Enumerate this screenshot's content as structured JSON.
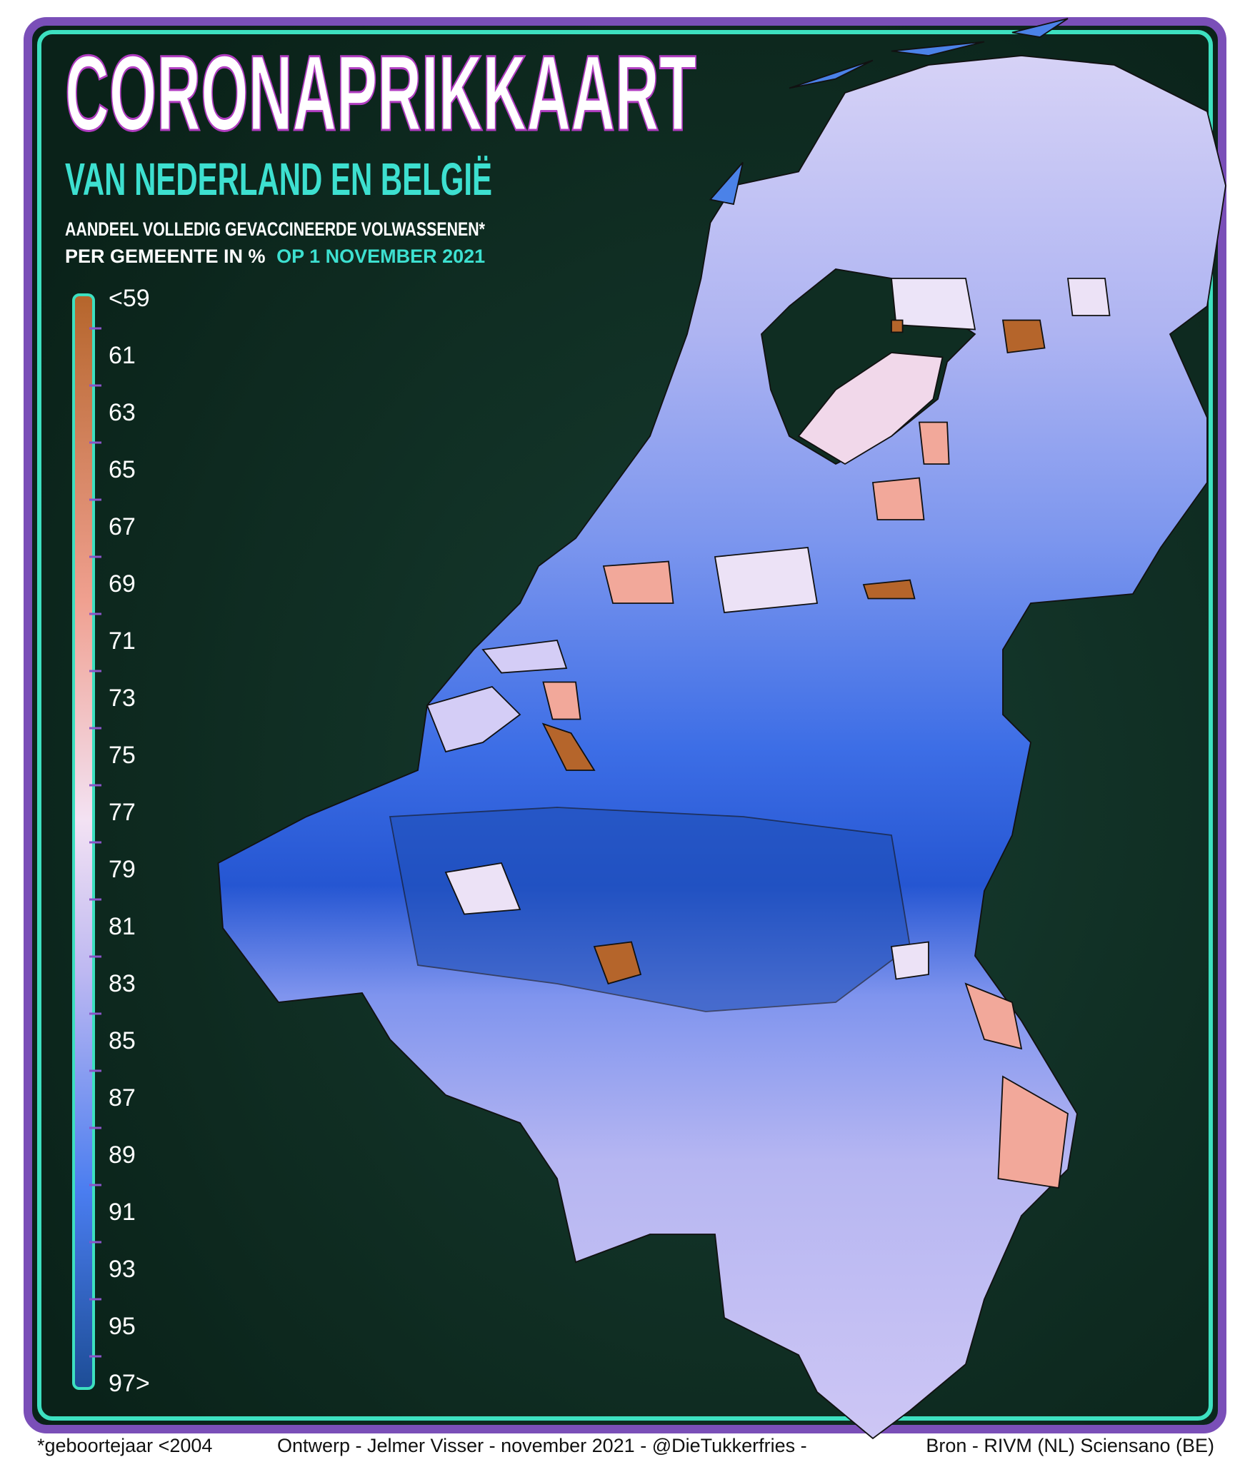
{
  "header": {
    "title": "CORONAPRIKKAART",
    "subtitle": "VAN NEDERLAND EN BELGIË",
    "description_line1": "AANDEEL VOLLEDIG GEVACCINEERDE VOLWASSENEN*",
    "description_line2": "PER GEMEENTE IN %",
    "description_date": "OP 1 NOVEMBER 2021"
  },
  "legend": {
    "labels": [
      "<59",
      "61",
      "63",
      "65",
      "67",
      "69",
      "71",
      "73",
      "75",
      "77",
      "79",
      "81",
      "83",
      "85",
      "87",
      "89",
      "91",
      "93",
      "95",
      "97>"
    ]
  },
  "footer": {
    "note": "*geboortejaar <2004",
    "credit": "Ontwerp - Jelmer Visser - november 2021 - @DieTukkerfries -",
    "source": "Bron - RIVM (NL) Sciensano (BE)"
  }
}
